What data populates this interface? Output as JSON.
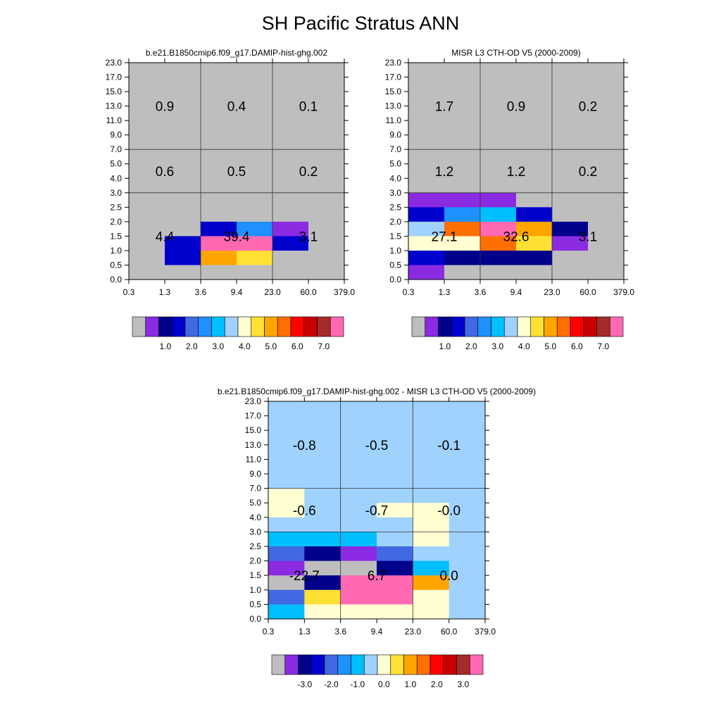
{
  "title": "SH Pacific Stratus ANN",
  "palette": {
    "colors": [
      "#bebebe",
      "#8a2be2",
      "#00008b",
      "#0000cd",
      "#4169e1",
      "#1e90ff",
      "#00bfff",
      "#a0d2ff",
      "#ffffd1",
      "#ffe135",
      "#ffa500",
      "#ff6e00",
      "#ff0000",
      "#c80000",
      "#a52a2a",
      "#ff69b4"
    ]
  },
  "chart_data": [
    {
      "type": "heatmap",
      "title": "b.e21.B1850cmip6.f09_g17.DAMIP-hist-ghg.002",
      "x_ticks": [
        "0.3",
        "1.3",
        "3.6",
        "9.4",
        "23.0",
        "60.0",
        "379.0"
      ],
      "y_ticks": [
        "0.0",
        "0.5",
        "1.0",
        "1.5",
        "2.0",
        "2.5",
        "3.0",
        "4.0",
        "5.0",
        "7.0",
        "9.0",
        "11.0",
        "13.0",
        "15.0",
        "17.0",
        "23.0"
      ],
      "cell_color_index": [
        [
          0,
          0,
          0,
          0,
          0,
          0,
          0,
          0,
          0,
          0,
          0,
          0,
          0,
          0,
          0
        ],
        [
          0,
          0,
          0,
          0,
          0,
          0,
          0,
          0,
          0,
          0,
          0,
          0,
          0,
          0,
          0
        ],
        [
          0,
          0,
          0,
          0,
          0,
          0,
          0,
          0,
          0,
          0,
          0,
          0,
          0,
          0,
          0
        ],
        [
          0,
          0,
          0,
          0,
          0,
          0,
          0,
          0,
          0,
          0,
          0,
          0,
          0,
          0,
          0
        ],
        [
          0,
          0,
          0,
          0,
          0,
          0,
          0,
          0,
          0,
          0,
          0,
          0,
          0,
          0,
          0
        ],
        [
          0,
          0,
          0,
          0,
          0,
          0,
          0,
          0,
          0,
          0,
          0,
          0,
          0,
          0,
          0
        ],
        [
          0,
          0,
          0,
          0,
          0,
          0,
          0,
          0,
          0,
          0,
          0,
          0,
          0,
          0,
          0
        ],
        [
          0,
          3,
          0,
          0,
          0,
          0,
          0,
          0,
          0,
          0,
          0,
          0,
          0,
          0,
          0
        ],
        [
          0,
          3,
          10,
          15,
          0,
          0,
          0,
          0,
          0,
          0,
          0,
          0,
          0,
          0,
          0
        ],
        [
          0,
          3,
          9,
          15,
          0,
          0,
          0,
          0,
          0,
          0,
          0,
          0,
          0,
          0,
          0
        ],
        [
          0,
          0,
          3,
          5,
          1,
          0,
          0,
          0,
          0,
          0,
          0,
          0,
          0,
          0,
          0
        ],
        [
          0,
          0,
          3,
          3,
          3,
          0,
          0,
          0,
          0,
          0,
          0,
          0,
          0,
          0,
          0
        ]
      ],
      "cell_color_index_note": "",
      "section_values": [
        [
          "0.9",
          "0.4",
          "0.1"
        ],
        [
          "0.6",
          "0.5",
          "0.2"
        ],
        [
          "4.4",
          "39.4",
          "3.1"
        ]
      ],
      "colorbar_labels": [
        "1.0",
        "2.0",
        "3.0",
        "4.0",
        "5.0",
        "6.0",
        "7.0"
      ]
    },
    {
      "type": "heatmap",
      "title": "MISR L3 CTH-OD V5 (2000-2009)",
      "x_ticks": [
        "0.3",
        "1.3",
        "3.6",
        "9.4",
        "23.0",
        "60.0",
        "379.0"
      ],
      "y_ticks": [
        "0.0",
        "0.5",
        "1.0",
        "1.5",
        "2.0",
        "2.5",
        "3.0",
        "4.0",
        "5.0",
        "7.0",
        "9.0",
        "11.0",
        "13.0",
        "15.0",
        "17.0",
        "23.0"
      ],
      "section_values": [
        [
          "1.7",
          "0.9",
          "0.2"
        ],
        [
          "1.2",
          "1.2",
          "0.2"
        ],
        [
          "27.1",
          "32.6",
          "3.1"
        ]
      ],
      "colorbar_labels": [
        "1.0",
        "2.0",
        "3.0",
        "4.0",
        "5.0",
        "6.0",
        "7.0"
      ]
    },
    {
      "type": "heatmap",
      "title": "b.e21.B1850cmip6.f09_g17.DAMIP-hist-ghg.002 - MISR L3 CTH-OD V5 (2000-2009)",
      "x_ticks": [
        "0.3",
        "1.3",
        "3.6",
        "9.4",
        "23.0",
        "60.0",
        "379.0"
      ],
      "y_ticks": [
        "0.0",
        "0.5",
        "1.0",
        "1.5",
        "2.0",
        "2.5",
        "3.0",
        "4.0",
        "5.0",
        "7.0",
        "9.0",
        "11.0",
        "13.0",
        "15.0",
        "17.0",
        "23.0"
      ],
      "section_values": [
        [
          "-0.8",
          "-0.5",
          "-0.1"
        ],
        [
          "-0.6",
          "-0.7",
          "-0.0"
        ],
        [
          "-22.7",
          "6.7",
          "0.0"
        ]
      ],
      "colorbar_labels": [
        "-3.0",
        "-2.0",
        "-1.0",
        "0.0",
        "1.0",
        "2.0",
        "3.0"
      ]
    }
  ]
}
